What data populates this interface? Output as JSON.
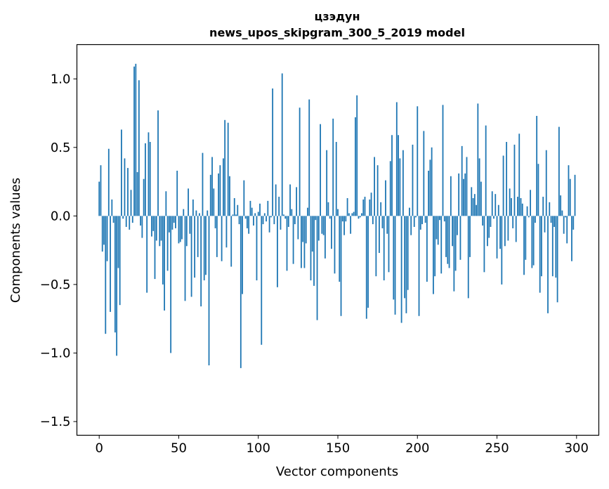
{
  "chart_data": {
    "type": "bar",
    "title_line1": "цзэдун",
    "title_line2": "news_upos_skipgram_300_5_2019 model",
    "xlabel": "Vector components",
    "ylabel": "Components values",
    "xlim": [
      -14,
      314
    ],
    "ylim": [
      -1.6,
      1.25
    ],
    "xticks": [
      0,
      50,
      100,
      150,
      200,
      250,
      300
    ],
    "xtick_labels": [
      "0",
      "50",
      "100",
      "150",
      "200",
      "250",
      "300"
    ],
    "yticks": [
      -1.5,
      -1.0,
      -0.5,
      0.0,
      0.5,
      1.0
    ],
    "ytick_labels": [
      "−1.5",
      "−1.0",
      "−0.5",
      "0.0",
      "0.5",
      "1.0"
    ],
    "bar_color": "#1f77b4",
    "grid": false,
    "values": [
      0.25,
      0.37,
      -0.26,
      -0.21,
      -0.86,
      -0.33,
      0.49,
      -0.7,
      0.12,
      -0.05,
      -0.85,
      -1.02,
      -0.38,
      -0.65,
      0.63,
      -0.02,
      0.42,
      -0.08,
      0.35,
      -0.1,
      0.19,
      -0.05,
      1.09,
      1.11,
      0.32,
      0.99,
      -0.07,
      -0.16,
      0.27,
      0.53,
      -0.56,
      0.61,
      0.54,
      -0.15,
      -0.11,
      -0.46,
      -0.18,
      0.77,
      -0.22,
      -0.18,
      -0.5,
      -0.69,
      0.18,
      -0.4,
      -0.12,
      -1.0,
      -0.1,
      -0.05,
      -0.09,
      0.33,
      -0.2,
      -0.19,
      -0.17,
      0.05,
      -0.62,
      -0.22,
      0.2,
      -0.13,
      -0.59,
      0.12,
      -0.45,
      0.04,
      -0.3,
      0.02,
      -0.66,
      0.46,
      -0.47,
      -0.43,
      0.04,
      -1.09,
      0.3,
      0.43,
      0.2,
      -0.09,
      -0.3,
      0.31,
      0.37,
      -0.33,
      0.42,
      0.7,
      -0.23,
      0.68,
      0.29,
      -0.37,
      0.01,
      0.13,
      0.01,
      0.08,
      -0.06,
      -1.11,
      -0.57,
      0.26,
      -0.02,
      -0.09,
      -0.13,
      0.11,
      0.06,
      -0.07,
      0.02,
      -0.47,
      0.03,
      0.09,
      -0.94,
      -0.06,
      0.02,
      -0.04,
      0.11,
      -0.12,
      -0.01,
      0.93,
      -0.06,
      0.23,
      -0.52,
      0.14,
      -0.1,
      1.04,
      0.01,
      -0.02,
      -0.4,
      -0.08,
      0.23,
      0.05,
      -0.35,
      -0.06,
      0.21,
      -0.17,
      0.79,
      -0.38,
      -0.19,
      -0.38,
      -0.2,
      0.06,
      0.85,
      -0.47,
      -0.26,
      -0.51,
      -0.03,
      -0.76,
      -0.18,
      0.67,
      -0.13,
      -0.14,
      -0.31,
      0.48,
      0.1,
      -0.02,
      -0.24,
      0.71,
      -0.42,
      0.54,
      0.05,
      -0.48,
      -0.73,
      -0.04,
      -0.14,
      -0.04,
      0.13,
      0.02,
      -0.13,
      0.02,
      0.03,
      0.72,
      0.88,
      -0.02,
      -0.01,
      0.02,
      0.12,
      0.14,
      -0.75,
      -0.67,
      0.12,
      0.17,
      -0.06,
      0.43,
      -0.44,
      0.37,
      -0.27,
      0.1,
      -0.09,
      -0.47,
      0.26,
      -0.13,
      -0.41,
      0.4,
      0.59,
      -0.61,
      -0.72,
      0.83,
      0.59,
      0.42,
      -0.78,
      0.48,
      -0.6,
      -0.71,
      -0.54,
      0.06,
      -0.14,
      0.52,
      -0.08,
      -0.01,
      0.8,
      -0.73,
      -0.1,
      -0.06,
      0.62,
      -0.05,
      -0.48,
      0.33,
      0.41,
      0.5,
      -0.57,
      -0.44,
      -0.17,
      -0.21,
      -0.03,
      -0.42,
      0.81,
      -0.04,
      -0.3,
      -0.35,
      -0.38,
      0.29,
      -0.22,
      -0.55,
      -0.4,
      -0.14,
      0.31,
      -0.32,
      0.51,
      0.27,
      0.31,
      0.43,
      -0.6,
      -0.3,
      0.21,
      0.13,
      0.16,
      0.08,
      0.82,
      0.42,
      0.25,
      -0.07,
      -0.41,
      0.66,
      -0.22,
      -0.16,
      -0.08,
      0.18,
      -0.02,
      0.16,
      -0.31,
      0.08,
      -0.24,
      -0.5,
      0.44,
      -0.22,
      0.54,
      -0.18,
      0.2,
      0.13,
      -0.09,
      0.52,
      -0.19,
      0.14,
      0.6,
      0.13,
      0.09,
      -0.43,
      -0.32,
      0.07,
      -0.01,
      0.19,
      -0.38,
      -0.36,
      -0.05,
      0.73,
      0.38,
      -0.56,
      -0.44,
      0.14,
      -0.12,
      0.48,
      -0.71,
      0.1,
      -0.05,
      -0.44,
      -0.08,
      -0.45,
      -0.63,
      0.65,
      0.15,
      0.04,
      -0.13,
      -0.01,
      -0.2,
      0.37,
      0.27,
      -0.33,
      -0.1,
      0.3
    ]
  }
}
